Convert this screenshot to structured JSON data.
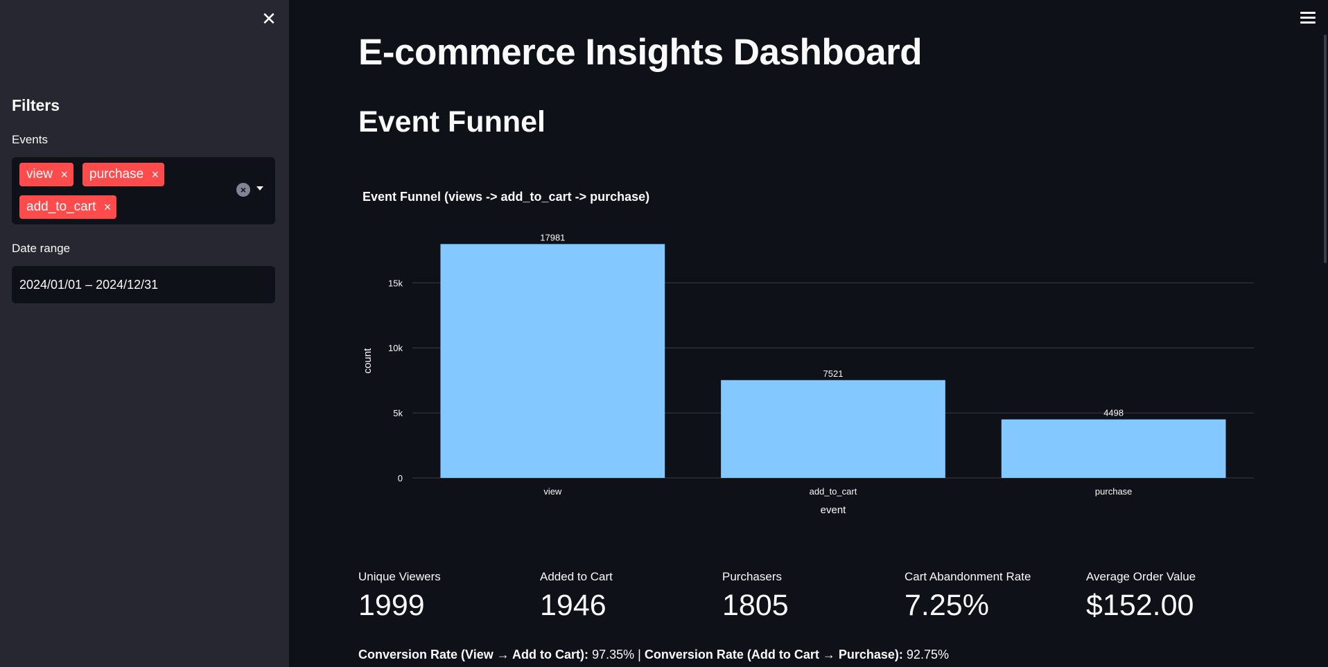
{
  "sidebar": {
    "close_icon": "close-icon",
    "filters_heading": "Filters",
    "events_label": "Events",
    "event_chips": [
      "view",
      "purchase",
      "add_to_cart"
    ],
    "chip_remove_glyph": "×",
    "chip_color": "#ff4b4b",
    "date_label": "Date range",
    "date_value": "2024/01/01 – 2024/12/31"
  },
  "header": {
    "menu_icon": "hamburger-menu-icon"
  },
  "main": {
    "title": "E-commerce Insights Dashboard",
    "section_title": "Event Funnel",
    "metrics": [
      {
        "label": "Unique Viewers",
        "value": "1999"
      },
      {
        "label": "Added to Cart",
        "value": "1946"
      },
      {
        "label": "Purchasers",
        "value": "1805"
      },
      {
        "label": "Cart Abandonment Rate",
        "value": "7.25%"
      },
      {
        "label": "Average Order Value",
        "value": "$152.00"
      }
    ],
    "conversion": {
      "label1": "Conversion Rate (View → Add to Cart):",
      "value1": "97.35%",
      "separator": "|",
      "label2": "Conversion Rate (Add to Cart → Purchase):",
      "value2": "92.75%"
    }
  },
  "chart_data": {
    "type": "bar",
    "title": "Event Funnel (views -> add_to_cart -> purchase)",
    "xlabel": "event",
    "ylabel": "count",
    "categories": [
      "view",
      "add_to_cart",
      "purchase"
    ],
    "values": [
      17981,
      7521,
      4498
    ],
    "data_labels": [
      "17981",
      "7521",
      "4498"
    ],
    "ylim": [
      0,
      18000
    ],
    "yticks": [
      0,
      5000,
      10000,
      15000
    ],
    "ytick_labels": [
      "0",
      "5k",
      "10k",
      "15k"
    ],
    "bar_color": "#83c9ff",
    "grid": true
  }
}
